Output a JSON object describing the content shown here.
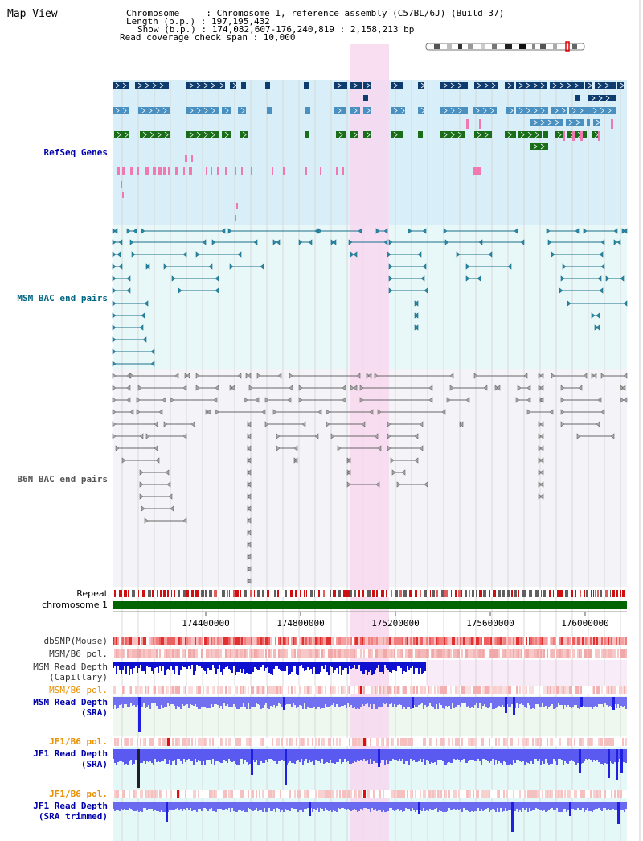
{
  "page": {
    "title": "Map View",
    "header": {
      "chromosome_line": "Chromosome     : Chromosome 1, reference assembly (C57BL/6J) (Build 37)",
      "length_line": "Length (b.p.) : 197,195,432",
      "show_line": "Show (b.p.) : 174,082,607-176,240,819 : 2,158,213 bp",
      "coverage_line": "Read coverage check span : 10,000"
    }
  },
  "tracks": {
    "refseq": {
      "label": "RefSeq Genes",
      "color": "#0000aa"
    },
    "msm_bac": {
      "label": "MSM BAC end pairs",
      "color": "#006680"
    },
    "b6n_bac": {
      "label": "B6N BAC end pairs",
      "color": "#555555"
    },
    "repeat": {
      "label": "Repeat"
    },
    "chromosome": {
      "label": "chromosome 1",
      "color": "#006400"
    },
    "axis": {
      "ticks": [
        "174400000",
        "174800000",
        "175200000",
        "175600000",
        "176000000"
      ]
    },
    "dbsnp": {
      "label": "dbSNP(Mouse)"
    },
    "msm_b6_pol_cap": {
      "label": "MSM/B6 pol."
    },
    "msm_depth_cap": {
      "label": "MSM Read Depth\n(Capillary)"
    },
    "msm_b6_pol_sra": {
      "label": "MSM/B6 pol.",
      "color": "#e89000"
    },
    "msm_depth_sra": {
      "label": "MSM Read Depth\n(SRA)",
      "color": "#0000aa"
    },
    "jf1_b6_pol": {
      "label": "JF1/B6 pol.",
      "color": "#e89000"
    },
    "jf1_depth_sra": {
      "label": "JF1 Read Depth\n(SRA)",
      "color": "#0000aa"
    },
    "jf1_b6_pol_2": {
      "label": "JF1/B6 pol.",
      "color": "#e89000"
    },
    "jf1_depth_trim": {
      "label": "JF1 Read Depth\n(SRA trimmed)",
      "color": "#0000aa"
    }
  },
  "colors": {
    "refseq_bg": "#d8eef8",
    "bac_bg": "#e8f8f8",
    "b6n_bg": "#f4f4f8",
    "highlight": "#f8d8f0",
    "gene_dark": "#0f3c6e",
    "gene_mid": "#4a90c0",
    "gene_green": "#1a6e1a",
    "pink": "#f07ab0",
    "depth_blue": "#2020e0",
    "depth_light": "#7070f0"
  }
}
